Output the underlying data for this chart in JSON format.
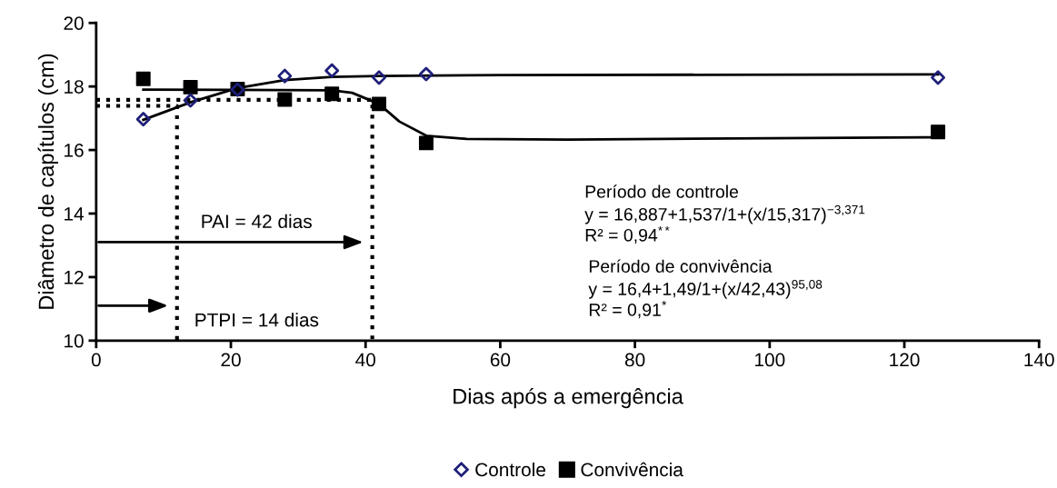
{
  "chart_data": {
    "type": "scatter",
    "xlabel": "Dias após a emergência",
    "ylabel": "Diâmetro de capítulos (cm)",
    "xlim": [
      0,
      140
    ],
    "xticks": [
      0,
      20,
      40,
      60,
      80,
      100,
      120,
      140
    ],
    "ylim": [
      10,
      20
    ],
    "yticks": [
      10,
      12,
      14,
      16,
      18,
      20
    ],
    "grid": false,
    "legend": "bottom",
    "series": [
      {
        "name": "Controle",
        "marker": "diamond",
        "color": "#1f1f7a",
        "x": [
          7,
          14,
          21,
          28,
          35,
          42,
          49,
          125
        ],
        "values": [
          16.97,
          17.56,
          17.9,
          18.33,
          18.5,
          18.28,
          18.39,
          18.28
        ]
      },
      {
        "name": "Convivência",
        "marker": "square",
        "color": "#000000",
        "x": [
          7,
          14,
          21,
          28,
          35,
          42,
          49,
          125
        ],
        "values": [
          18.24,
          17.98,
          17.92,
          17.59,
          17.77,
          17.45,
          16.22,
          16.57
        ]
      },
      {
        "type": "line",
        "color": "#000000",
        "line_style": "solid",
        "x": [
          7,
          14,
          21,
          28,
          35,
          42,
          60,
          125
        ],
        "values": [
          16.95,
          17.5,
          17.95,
          18.2,
          18.3,
          18.33,
          18.36,
          18.38
        ]
      },
      {
        "type": "line",
        "color": "#000000",
        "line_style": "solid",
        "x": [
          7,
          35,
          38,
          42,
          45,
          49,
          55,
          70,
          125
        ],
        "values": [
          17.9,
          17.88,
          17.8,
          17.45,
          16.9,
          16.45,
          16.35,
          16.33,
          16.4
        ]
      },
      {
        "type": "line",
        "color": "#000000",
        "line_style": "dotted",
        "x": [
          0,
          41,
          41
        ],
        "values": [
          17.58,
          17.58,
          10
        ]
      },
      {
        "type": "line",
        "color": "#000000",
        "line_style": "dotted",
        "x": [
          0,
          12,
          12
        ],
        "values": [
          17.39,
          17.39,
          10
        ]
      }
    ],
    "annotations": [
      "PAI = 42 dias",
      "PTPI = 14 dias",
      "Período de controle\ny = 16,887+1,537/1+(x/15,317)$^{−3,371}$\nR² = 0,94$^{**}$",
      "Período de convivência\ny = 16,4+1,49/1+(x/42,43)$^{95,08}$\nR² = 0,91$^{*}$"
    ]
  }
}
